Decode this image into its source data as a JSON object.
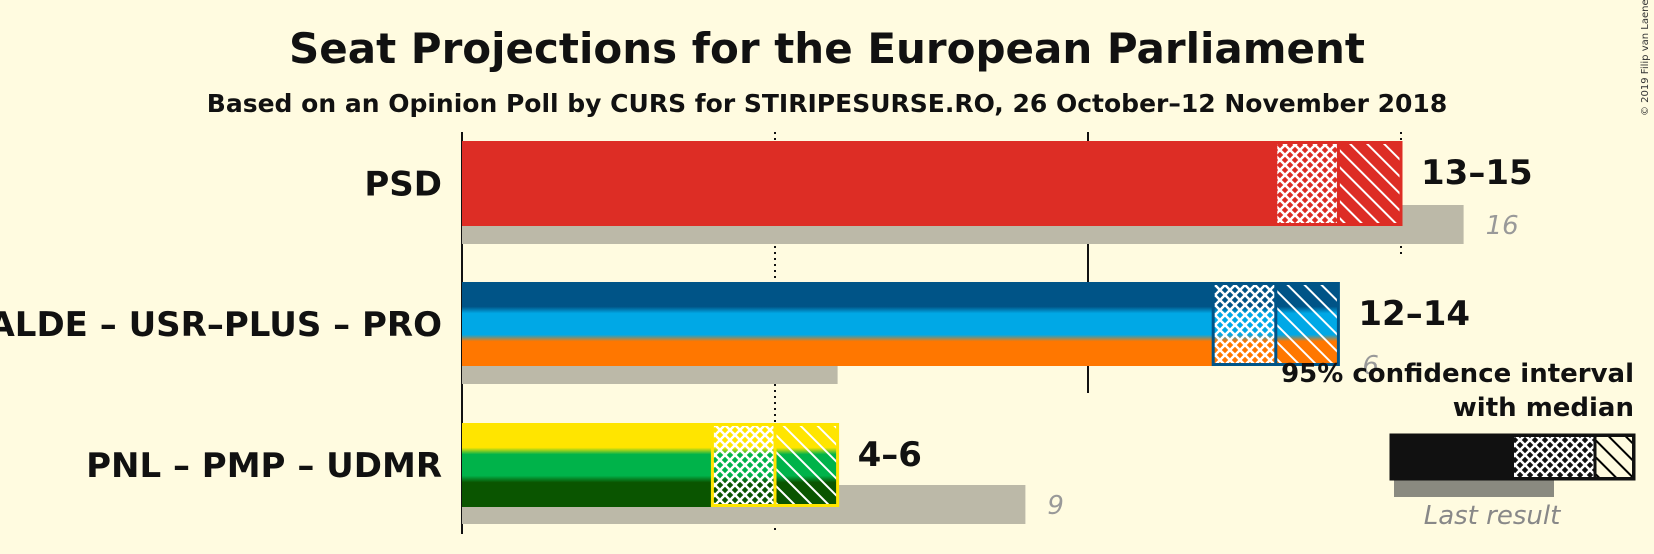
{
  "title": "Seat Projections for the European Parliament",
  "subtitle": "Based on an Opinion Poll by CURS for STIRIPESURSE.RO, 26 October–12 November 2018",
  "credit": "© 2019 Filip van Laenen",
  "chart_data": {
    "type": "bar",
    "orientation": "horizontal",
    "categories": [
      "PSD",
      "ALDE – USR–PLUS – PRO",
      "PNL – PMP – UDMR"
    ],
    "series": [
      {
        "name": "PSD",
        "colors": [
          "#dd2d25"
        ],
        "low": 13,
        "median": 14,
        "high": 15,
        "range_label": "13–15",
        "last_result": 16,
        "last_label": "16"
      },
      {
        "name": "ALDE – USR–PLUS – PRO",
        "colors": [
          "#005487",
          "#00a8e6",
          "#ff7700"
        ],
        "low": 12,
        "median": 13,
        "high": 14,
        "range_label": "12–14",
        "last_result": 6,
        "last_label": "6"
      },
      {
        "name": "PNL – PMP – UDMR",
        "colors": [
          "#ffe500",
          "#00b34a",
          "#0a5500"
        ],
        "low": 4,
        "median": 5,
        "high": 6,
        "range_label": "4–6",
        "last_result": 9,
        "last_label": "9"
      }
    ],
    "xlim": [
      0,
      16
    ],
    "gridlines_solid": [
      0,
      10
    ],
    "gridlines_dotted": [
      5,
      15
    ],
    "grid": true,
    "legend": {
      "position": "bottom-right",
      "ci_label_line1": "95% confidence interval",
      "ci_label_line2": "with median",
      "last_label": "Last result"
    }
  }
}
